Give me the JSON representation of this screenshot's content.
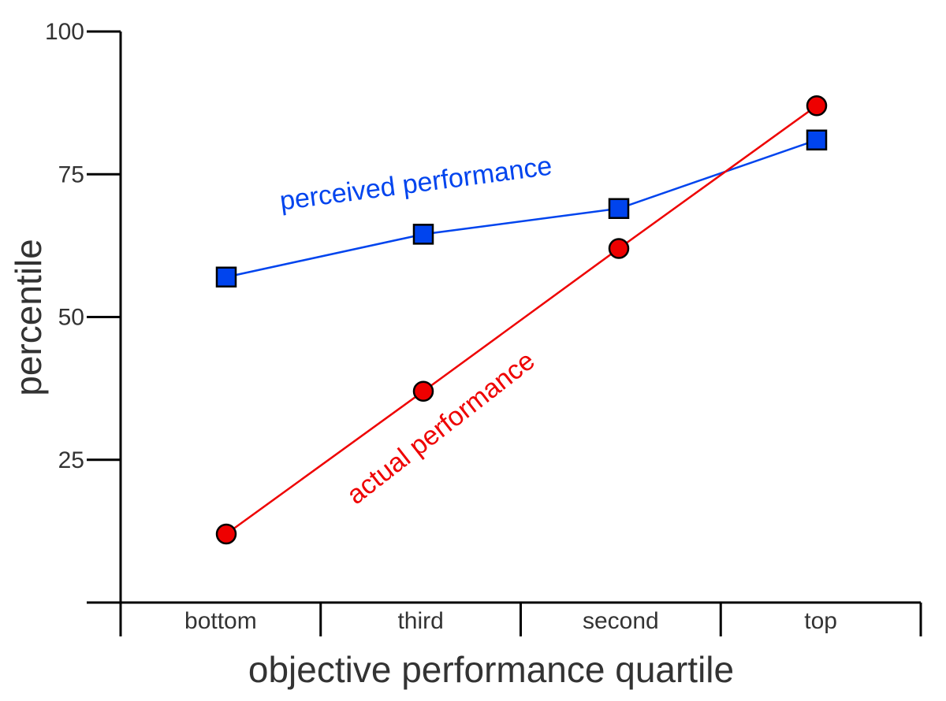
{
  "chart_data": {
    "type": "line",
    "xlabel": "objective performance quartile",
    "ylabel": "percentile",
    "categories": [
      "bottom",
      "third",
      "second",
      "top"
    ],
    "ylim": [
      0,
      100
    ],
    "yticks": [
      25,
      50,
      75,
      100
    ],
    "grid": false,
    "legend": "inline labels",
    "series": [
      {
        "name": "perceived performance",
        "marker": "square",
        "color": "#0044ee",
        "x": [
          "bottom",
          "third",
          "second",
          "top"
        ],
        "values": [
          57,
          64.5,
          69,
          81
        ]
      },
      {
        "name": "actual performance",
        "marker": "circle",
        "color": "#ee0000",
        "x": [
          "bottom",
          "third",
          "second",
          "top"
        ],
        "values": [
          12,
          37,
          62,
          87
        ]
      }
    ]
  }
}
